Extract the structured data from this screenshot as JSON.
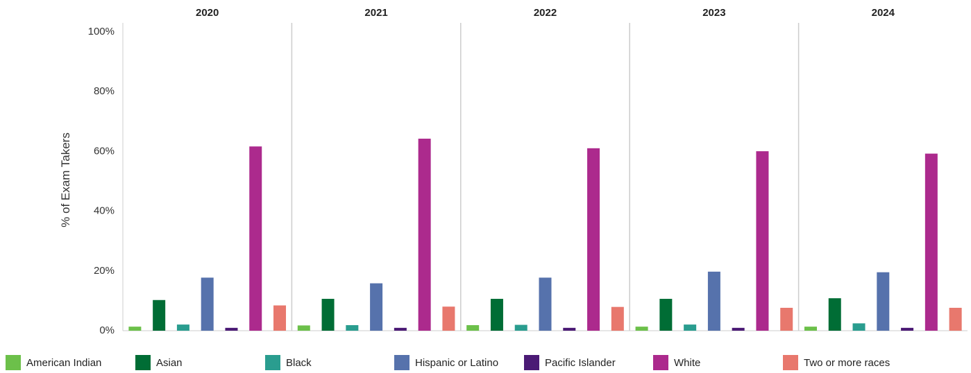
{
  "chart_data": {
    "type": "bar",
    "ylabel": "% of Exam Takers",
    "ylim": [
      0,
      100
    ],
    "yticks": [
      0,
      20,
      40,
      60,
      80,
      100
    ],
    "ytick_labels": [
      "0%",
      "20%",
      "40%",
      "60%",
      "80%",
      "100%"
    ],
    "facets": [
      "2020",
      "2021",
      "2022",
      "2023",
      "2024"
    ],
    "categories": [
      "American Indian",
      "Asian",
      "Black",
      "Hispanic or Latino",
      "Pacific Islander",
      "White",
      "Two or more races"
    ],
    "colors": [
      "#6cc04a",
      "#006d35",
      "#2a9d8f",
      "#5672ac",
      "#4b1a75",
      "#ac2a8d",
      "#e8786d"
    ],
    "grid": false,
    "legend_position": "bottom",
    "series": [
      {
        "facet": "2020",
        "values": [
          0.9,
          9.8,
          1.6,
          17.3,
          0.5,
          61.2,
          8.0
        ]
      },
      {
        "facet": "2021",
        "values": [
          1.3,
          10.2,
          1.4,
          15.4,
          0.5,
          63.8,
          7.6
        ]
      },
      {
        "facet": "2022",
        "values": [
          1.4,
          10.2,
          1.5,
          17.3,
          0.5,
          60.6,
          7.5
        ]
      },
      {
        "facet": "2023",
        "values": [
          0.9,
          10.2,
          1.6,
          19.3,
          0.5,
          59.6,
          7.2
        ]
      },
      {
        "facet": "2024",
        "values": [
          0.9,
          10.4,
          2.0,
          19.1,
          0.5,
          58.8,
          7.2
        ]
      }
    ]
  }
}
